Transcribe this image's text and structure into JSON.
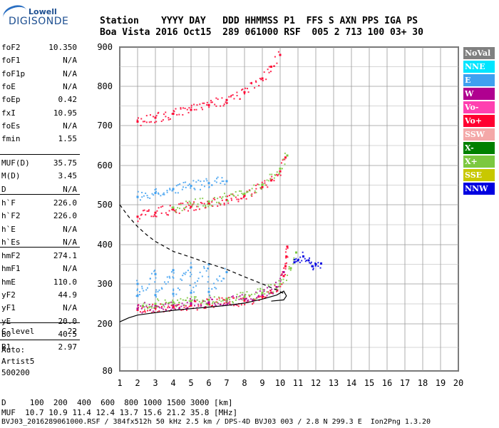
{
  "logo": {
    "top": "Lowell",
    "main": "DIGISONDE"
  },
  "header": {
    "row1": "Station    YYYY DAY   DDD HHMMSS P1  FFS S AXN PPS IGA PS",
    "row2": "Boa Vista 2016 Oct15  289 061000 RSF  005 2 713 100 03+ 30"
  },
  "params_group1": [
    {
      "k": "foF2",
      "v": "10.350"
    },
    {
      "k": "foF1",
      "v": "N/A"
    },
    {
      "k": "foF1p",
      "v": "N/A"
    },
    {
      "k": "foE",
      "v": "N/A"
    },
    {
      "k": "foEp",
      "v": "0.42"
    },
    {
      "k": "fxI",
      "v": "10.95"
    },
    {
      "k": "foEs",
      "v": "N/A"
    },
    {
      "k": "fmin",
      "v": "1.55"
    }
  ],
  "params_group2": [
    {
      "k": "MUF(D)",
      "v": "35.75"
    },
    {
      "k": "M(D)",
      "v": "3.45"
    },
    {
      "k": "D",
      "v": "N/A"
    }
  ],
  "params_group3": [
    {
      "k": "h`F",
      "v": "226.0"
    },
    {
      "k": "h`F2",
      "v": "226.0"
    },
    {
      "k": "h`E",
      "v": "N/A"
    },
    {
      "k": "h`Es",
      "v": "N/A"
    }
  ],
  "params_group4": [
    {
      "k": "hmF2",
      "v": "274.1"
    },
    {
      "k": "hmF1",
      "v": "N/A"
    },
    {
      "k": "hmE",
      "v": "110.0"
    },
    {
      "k": "yF2",
      "v": "44.9"
    },
    {
      "k": "yF1",
      "v": "N/A"
    },
    {
      "k": "yE",
      "v": "20.0"
    },
    {
      "k": "B0",
      "v": "40.5"
    },
    {
      "k": "B1",
      "v": "2.97"
    }
  ],
  "params_group5": [
    {
      "k": "C-level",
      "v": "22"
    }
  ],
  "autoscale": {
    "line1": "Auto:",
    "line2": "Artist5",
    "line3": "500200"
  },
  "legend": [
    {
      "name": "NoVal",
      "color": "#808080"
    },
    {
      "name": "NNE",
      "color": "#00e5ff"
    },
    {
      "name": "E",
      "color": "#3fa0f0"
    },
    {
      "name": "W",
      "color": "#b00090"
    },
    {
      "name": "Vo-",
      "color": "#ff40b0"
    },
    {
      "name": "Vo+",
      "color": "#ff0030"
    },
    {
      "name": "SSW",
      "color": "#f4a8a8"
    },
    {
      "name": "X-",
      "color": "#008000"
    },
    {
      "name": "X+",
      "color": "#7cc840"
    },
    {
      "name": "SSE",
      "color": "#c8c800"
    },
    {
      "name": "NNW",
      "color": "#0000e0"
    }
  ],
  "footer": {
    "line1": "D     100  200  400  600  800 1000 1500 3000 [km]",
    "line2": "MUF  10.7 10.9 11.4 12.4 13.7 15.6 21.2 35.8 [MHz]",
    "line3": "BVJ03_2016289061000.RSF / 384fx512h 50 kHz 2.5 km / DPS-4D BVJ03 003 / 2.8 N 299.3 E  Ion2Png 1.3.20"
  },
  "chart_data": {
    "type": "scatter",
    "xlim": [
      1,
      20
    ],
    "ylim": [
      80,
      900
    ],
    "xticks": [
      1,
      2,
      3,
      4,
      5,
      6,
      7,
      8,
      9,
      10,
      11,
      12,
      13,
      14,
      15,
      16,
      17,
      18,
      19,
      20
    ],
    "yticks": [
      80,
      200,
      300,
      400,
      500,
      600,
      700,
      800,
      900
    ],
    "xlabel": "",
    "ylabel": "",
    "series": [
      {
        "color_key": "Vo+",
        "color": "#ff0030",
        "points": [
          [
            2,
            235
          ],
          [
            3,
            240
          ],
          [
            4,
            243
          ],
          [
            5,
            246
          ],
          [
            6,
            250
          ],
          [
            7,
            254
          ],
          [
            8,
            258
          ],
          [
            9,
            268
          ],
          [
            9.5,
            278
          ],
          [
            10,
            300
          ],
          [
            10.2,
            320
          ],
          [
            10.3,
            345
          ],
          [
            10.35,
            370
          ],
          [
            10.4,
            395
          ]
        ]
      },
      {
        "color_key": "W",
        "color": "#b00090",
        "points": [
          [
            2,
            238
          ],
          [
            3,
            244
          ],
          [
            4,
            247
          ],
          [
            5,
            250
          ],
          [
            6,
            254
          ],
          [
            7,
            257
          ],
          [
            8,
            262
          ],
          [
            9,
            272
          ],
          [
            9.8,
            292
          ],
          [
            10.2,
            330
          ]
        ]
      },
      {
        "color_key": "X+",
        "color": "#7cc840",
        "points": [
          [
            2.3,
            245
          ],
          [
            3,
            250
          ],
          [
            4,
            254
          ],
          [
            5,
            257
          ],
          [
            6,
            260
          ],
          [
            7,
            263
          ],
          [
            8,
            268
          ],
          [
            9,
            278
          ],
          [
            10,
            300
          ],
          [
            10.6,
            340
          ],
          [
            10.9,
            380
          ]
        ]
      },
      {
        "color_key": "E",
        "color": "#3fa0f0",
        "points": [
          [
            2,
            300
          ],
          [
            3,
            325
          ],
          [
            4,
            335
          ],
          [
            5,
            342
          ],
          [
            6,
            350
          ],
          [
            7,
            330
          ],
          [
            2,
            270
          ],
          [
            3,
            272
          ],
          [
            4,
            275
          ],
          [
            5,
            278
          ],
          [
            6,
            280
          ]
        ]
      },
      {
        "color_key": "Vo+ 2-hop",
        "color": "#ff0030",
        "points": [
          [
            2,
            470
          ],
          [
            3,
            480
          ],
          [
            4,
            488
          ],
          [
            5,
            495
          ],
          [
            6,
            503
          ],
          [
            7,
            512
          ],
          [
            8,
            523
          ],
          [
            9,
            545
          ],
          [
            9.5,
            562
          ],
          [
            10,
            585
          ],
          [
            10.3,
            620
          ]
        ]
      },
      {
        "color_key": "X+ 2-hop",
        "color": "#7cc840",
        "points": [
          [
            4,
            493
          ],
          [
            6,
            508
          ],
          [
            8,
            528
          ],
          [
            9,
            550
          ],
          [
            10,
            592
          ],
          [
            10.4,
            625
          ]
        ]
      },
      {
        "color_key": "E 2-hop",
        "color": "#3fa0f0",
        "points": [
          [
            2,
            520
          ],
          [
            3,
            530
          ],
          [
            4,
            540
          ],
          [
            5,
            548
          ],
          [
            6,
            555
          ],
          [
            7,
            560
          ]
        ]
      },
      {
        "color_key": "Vo+ 3-hop",
        "color": "#ff0030",
        "points": [
          [
            2,
            710
          ],
          [
            3,
            720
          ],
          [
            4,
            730
          ],
          [
            5,
            740
          ],
          [
            6,
            752
          ],
          [
            7,
            765
          ],
          [
            8,
            785
          ],
          [
            9,
            820
          ],
          [
            9.5,
            850
          ],
          [
            10,
            880
          ]
        ]
      },
      {
        "color_key": "NNW",
        "color": "#0000e0",
        "points": [
          [
            10.8,
            355
          ],
          [
            11,
            360
          ],
          [
            11.3,
            370
          ],
          [
            11.6,
            360
          ],
          [
            12,
            350
          ],
          [
            12.3,
            352
          ],
          [
            11.8,
            345
          ]
        ]
      }
    ],
    "profile_curves": [
      {
        "style": "solid",
        "points": [
          [
            1,
            205
          ],
          [
            1.5,
            215
          ],
          [
            2,
            222
          ],
          [
            3,
            228
          ],
          [
            4,
            234
          ],
          [
            5,
            238
          ],
          [
            6,
            242
          ],
          [
            7,
            246
          ],
          [
            8,
            252
          ],
          [
            9,
            262
          ],
          [
            9.8,
            272
          ],
          [
            10.2,
            282
          ],
          [
            10.35,
            270
          ],
          [
            10.2,
            260
          ],
          [
            9.5,
            257
          ]
        ]
      },
      {
        "style": "dashed",
        "points": [
          [
            1,
            500
          ],
          [
            1.5,
            470
          ],
          [
            2,
            445
          ],
          [
            2.5,
            425
          ],
          [
            3,
            408
          ],
          [
            4,
            383
          ],
          [
            5,
            368
          ],
          [
            6,
            352
          ],
          [
            7,
            337
          ],
          [
            8,
            318
          ],
          [
            9,
            300
          ],
          [
            9.8,
            285
          ],
          [
            10.2,
            276
          ]
        ]
      }
    ]
  }
}
